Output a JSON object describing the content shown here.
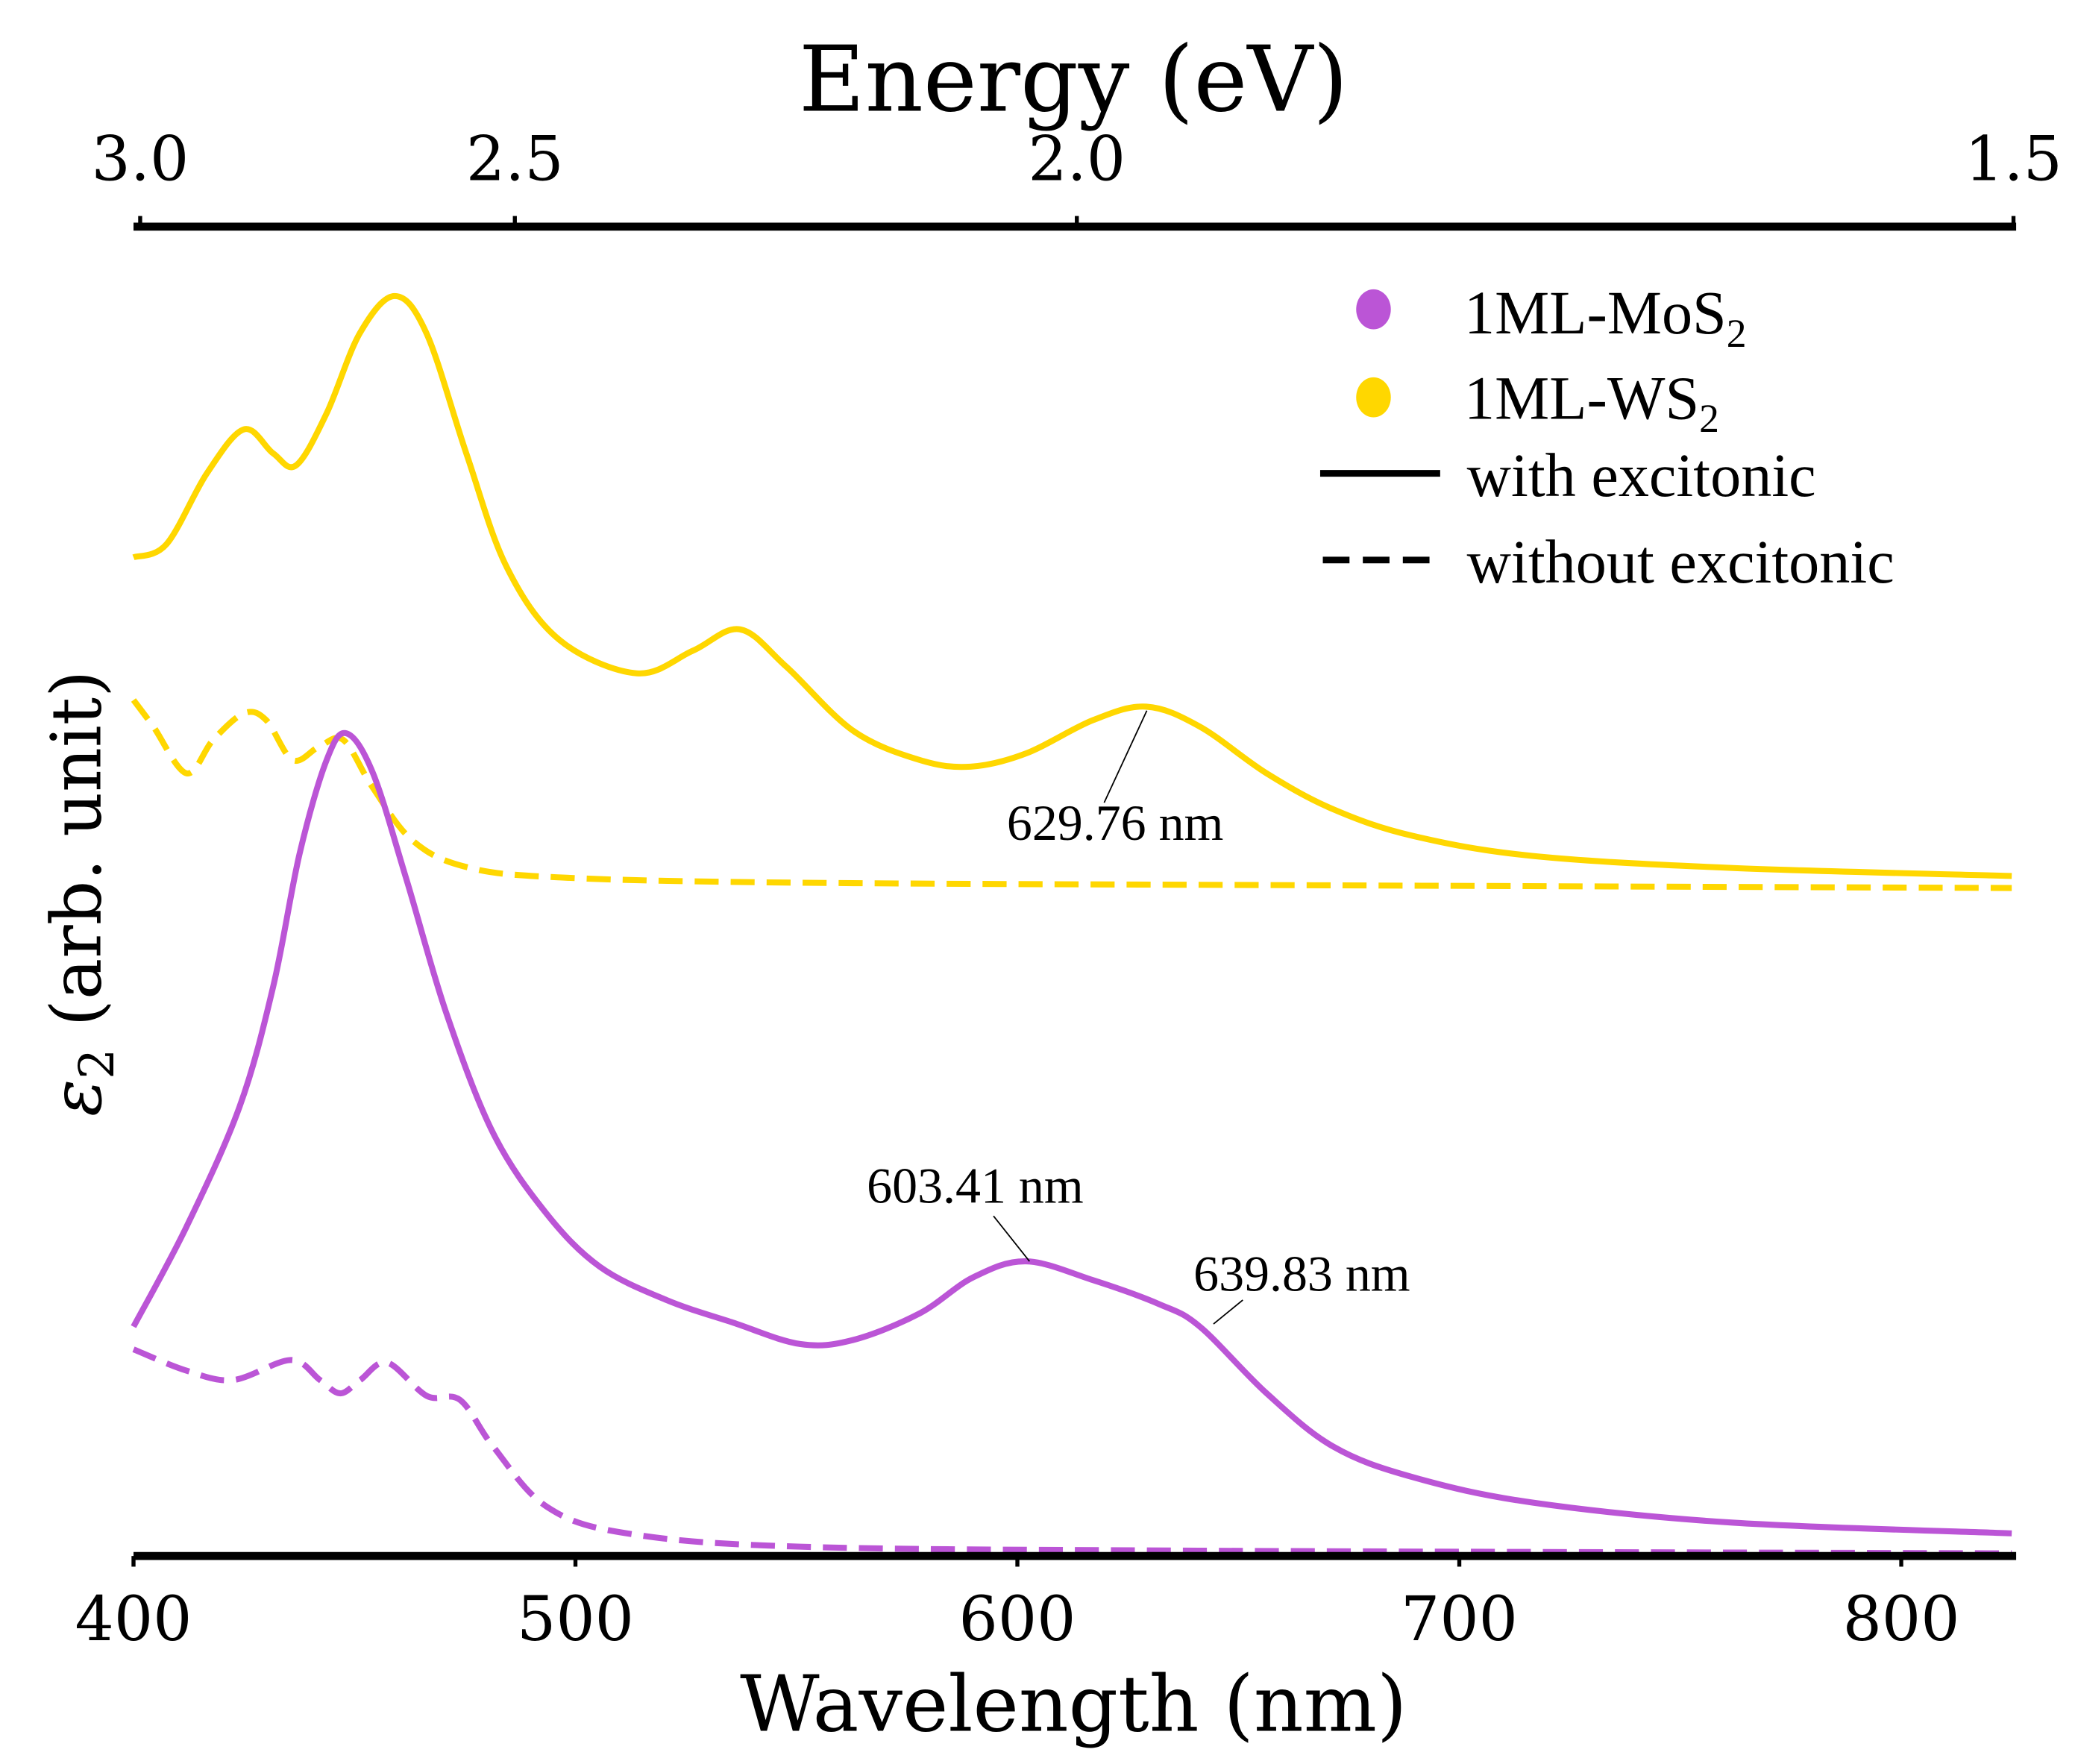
{
  "chart_data": {
    "type": "line",
    "title": "",
    "xlabel": "Wavelength (nm)",
    "ylabel": "ε",
    "ylabel_sub": "2",
    "ylabel_rest": " (arb. unit)",
    "top_xlabel": "Energy (eV)",
    "xlim": [
      400,
      826
    ],
    "ylim": [
      0,
      10
    ],
    "x_ticks": [
      400,
      500,
      600,
      700,
      800
    ],
    "x_tick_labels": [
      "400",
      "500",
      "600",
      "700",
      "800"
    ],
    "top_ticks": [
      3.0,
      2.5,
      2.0,
      1.5
    ],
    "top_tick_labels": [
      "3.0",
      "2.5",
      "2.0",
      "1.5"
    ],
    "top_axis_scale": "reciprocal of energy (linear in wavelength)",
    "y_ticks_shown": false,
    "grid": false,
    "legend_placement": "top-right",
    "colors": {
      "mos2": "#bb55d6",
      "ws2": "#ffd700",
      "axis": "#000000"
    },
    "legend": [
      {
        "label": "1ML-MoS",
        "sub": "2",
        "marker": "dot",
        "color": "#bb55d6"
      },
      {
        "label": "1ML-WS",
        "sub": "2",
        "marker": "dot",
        "color": "#ffd700"
      },
      {
        "label": "with excitonic",
        "marker": "solid-line",
        "color": "#000000"
      },
      {
        "label": "without excitonic",
        "marker": "dashed-line",
        "color": "#000000"
      }
    ],
    "series": [
      {
        "material": "1ML-WS2",
        "excitonic": true,
        "color": "#ffd700",
        "dash": false,
        "x": [
          400,
          407.5,
          416.6,
          425,
          431.6,
          436.8,
          443.7,
          451.2,
          459.1,
          466.3,
          475.3,
          484.4,
          496.4,
          513.9,
          526.6,
          537.2,
          547.7,
          562.8,
          577.9,
          589.4,
          602,
          617.2,
          629.2,
          641.3,
          656.4,
          671.5,
          689.6,
          716.7,
          762,
          825
        ],
        "y": [
          7.49,
          7.59,
          8.12,
          8.45,
          8.27,
          8.18,
          8.57,
          9.17,
          9.45,
          9.17,
          8.27,
          7.42,
          6.87,
          6.62,
          6.79,
          6.95,
          6.67,
          6.19,
          5.97,
          5.92,
          6.02,
          6.27,
          6.37,
          6.22,
          5.87,
          5.6,
          5.4,
          5.25,
          5.16,
          5.1
        ]
      },
      {
        "material": "1ML-WS2",
        "excitonic": false,
        "color": "#ffd700",
        "dash": true,
        "x": [
          400,
          404.5,
          412,
          418,
          425,
          430,
          436,
          442,
          447.5,
          454,
          463,
          475,
          496,
          550,
          671.5,
          825
        ],
        "y": [
          6.42,
          6.22,
          5.87,
          6.12,
          6.32,
          6.27,
          5.97,
          6.07,
          6.12,
          5.77,
          5.37,
          5.17,
          5.09,
          5.05,
          5.03,
          5.01
        ]
      },
      {
        "material": "1ML-MoS2",
        "excitonic": true,
        "color": "#bb55d6",
        "dash": false,
        "x": [
          400,
          412,
          424,
          431.6,
          437.6,
          443.7,
          448.2,
          454.2,
          461.8,
          470.8,
          481.4,
          493.4,
          505.5,
          520.6,
          535.7,
          550.8,
          562.8,
          577.9,
          590,
          602,
          617,
          632,
          641.3,
          656.4,
          671.5,
          689.6,
          716.7,
          762,
          825
        ],
        "y": [
          1.72,
          2.47,
          3.37,
          4.27,
          5.27,
          5.97,
          6.17,
          5.87,
          5.07,
          4.07,
          3.17,
          2.57,
          2.17,
          1.92,
          1.75,
          1.59,
          1.62,
          1.82,
          2.09,
          2.21,
          2.07,
          1.89,
          1.72,
          1.22,
          0.82,
          0.59,
          0.4,
          0.25,
          0.17
        ]
      },
      {
        "material": "1ML-MoS2",
        "excitonic": false,
        "color": "#bb55d6",
        "dash": true,
        "x": [
          400,
          412,
          422.6,
          435.6,
          442.2,
          446.8,
          451.3,
          457.4,
          466.4,
          473.9,
          481.4,
          493.5,
          511.6,
          550.8,
          641,
          825
        ],
        "y": [
          1.55,
          1.39,
          1.32,
          1.47,
          1.32,
          1.22,
          1.32,
          1.45,
          1.2,
          1.17,
          0.82,
          0.37,
          0.17,
          0.07,
          0.04,
          0.02
        ]
      }
    ],
    "annotations": [
      {
        "text": "629.76 nm",
        "x": 629.76,
        "y": 6.37
      },
      {
        "text": "603.41 nm",
        "x": 603.41,
        "y": 2.21
      },
      {
        "text": "639.83 nm",
        "x": 639.83,
        "y": 1.74
      }
    ]
  }
}
